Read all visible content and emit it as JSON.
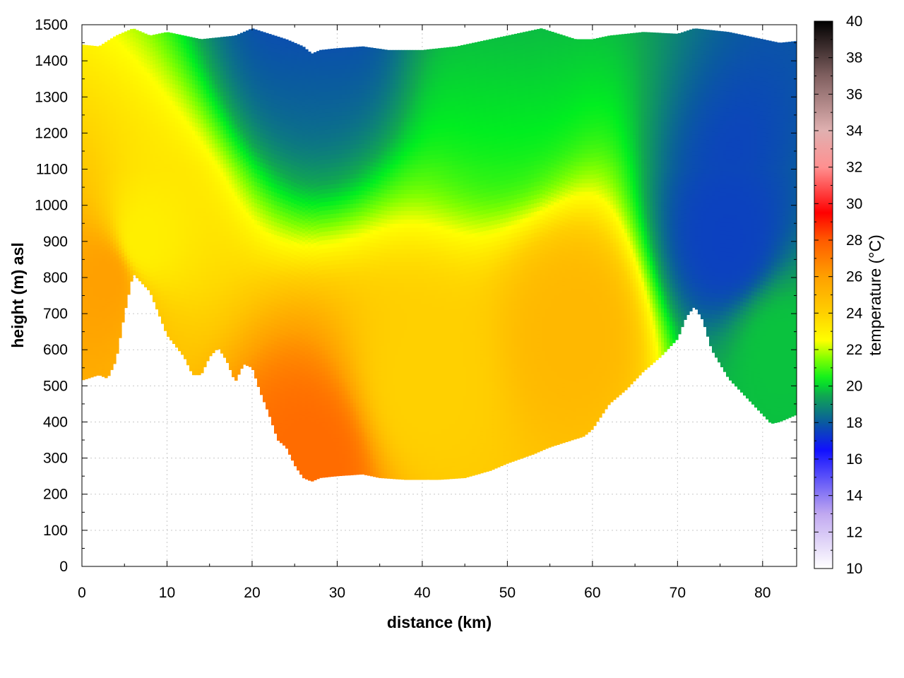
{
  "chart_data": {
    "type": "heatmap",
    "title": "",
    "xlabel": "distance (km)",
    "ylabel": "height (m) asl",
    "colorbar_label": "temperature (°C)",
    "xlim": [
      0,
      84
    ],
    "ylim": [
      0,
      1500
    ],
    "x_ticks": [
      "0",
      "10",
      "20",
      "30",
      "40",
      "50",
      "60",
      "70",
      "80"
    ],
    "y_ticks": [
      "0",
      "100",
      "200",
      "300",
      "400",
      "500",
      "600",
      "700",
      "800",
      "900",
      "1000",
      "1100",
      "1200",
      "1300",
      "1400",
      "1500"
    ],
    "colorbar_range": [
      10,
      40
    ],
    "colorbar_ticks": [
      "10",
      "12",
      "14",
      "16",
      "18",
      "20",
      "22",
      "24",
      "26",
      "28",
      "30",
      "32",
      "34",
      "36",
      "38",
      "40"
    ],
    "colorscale": [
      {
        "t": 10,
        "color": "#ffffff"
      },
      {
        "t": 13,
        "color": "#c0a8f0"
      },
      {
        "t": 16.5,
        "color": "#1010ff"
      },
      {
        "t": 18,
        "color": "#0a5aa0"
      },
      {
        "t": 19.5,
        "color": "#10a850"
      },
      {
        "t": 20.3,
        "color": "#00ee20"
      },
      {
        "t": 21.5,
        "color": "#80ff00"
      },
      {
        "t": 22.5,
        "color": "#ffff00"
      },
      {
        "t": 24,
        "color": "#ffd000"
      },
      {
        "t": 26,
        "color": "#ffa000"
      },
      {
        "t": 28,
        "color": "#ff5a00"
      },
      {
        "t": 29.5,
        "color": "#ff0000"
      },
      {
        "t": 32,
        "color": "#ff9090"
      },
      {
        "t": 34,
        "color": "#e0b0b0"
      },
      {
        "t": 37,
        "color": "#806060"
      },
      {
        "t": 40,
        "color": "#000000"
      }
    ],
    "terrain": {
      "x": [
        0,
        2,
        3,
        4,
        5,
        6,
        8,
        10,
        12,
        13,
        14,
        15,
        16,
        17,
        18,
        19,
        20,
        21,
        22,
        23,
        24,
        25,
        26,
        27,
        28,
        30,
        33,
        35,
        38,
        40,
        42,
        45,
        48,
        50,
        53,
        55,
        57,
        59,
        60,
        62,
        64,
        66,
        68,
        70,
        71,
        72,
        73,
        74,
        76,
        78,
        80,
        81,
        82,
        83,
        84
      ],
      "height": [
        515,
        530,
        520,
        570,
        700,
        810,
        760,
        640,
        580,
        530,
        530,
        580,
        605,
        570,
        510,
        560,
        550,
        480,
        420,
        350,
        330,
        280,
        245,
        235,
        245,
        250,
        255,
        245,
        240,
        240,
        240,
        245,
        265,
        285,
        310,
        330,
        345,
        360,
        380,
        450,
        490,
        540,
        580,
        630,
        690,
        720,
        680,
        600,
        520,
        470,
        420,
        395,
        400,
        410,
        420
      ]
    },
    "data_top": {
      "x": [
        0,
        2,
        4,
        6,
        8,
        10,
        14,
        18,
        20,
        24,
        26,
        27,
        28,
        30,
        33,
        36,
        40,
        44,
        48,
        52,
        54,
        58,
        60,
        62,
        66,
        70,
        72,
        76,
        80,
        82,
        84
      ],
      "height": [
        1445,
        1440,
        1470,
        1490,
        1470,
        1480,
        1460,
        1470,
        1490,
        1460,
        1440,
        1420,
        1430,
        1435,
        1440,
        1430,
        1430,
        1440,
        1460,
        1480,
        1490,
        1460,
        1460,
        1470,
        1480,
        1475,
        1490,
        1480,
        1460,
        1450,
        1455
      ]
    },
    "temperature_samples": [
      {
        "x_km": 3,
        "height_m": 800,
        "temp_c": 26
      },
      {
        "x_km": 7,
        "height_m": 900,
        "temp_c": 23
      },
      {
        "x_km": 27,
        "height_m": 280,
        "temp_c": 27.5
      },
      {
        "x_km": 27,
        "height_m": 1400,
        "temp_c": 18.5
      },
      {
        "x_km": 40,
        "height_m": 500,
        "temp_c": 24
      },
      {
        "x_km": 58,
        "height_m": 650,
        "temp_c": 25
      },
      {
        "x_km": 76,
        "height_m": 900,
        "temp_c": 17.5
      },
      {
        "x_km": 82,
        "height_m": 600,
        "temp_c": 19.8
      },
      {
        "x_km": 50,
        "height_m": 1300,
        "temp_c": 20.5
      }
    ]
  }
}
